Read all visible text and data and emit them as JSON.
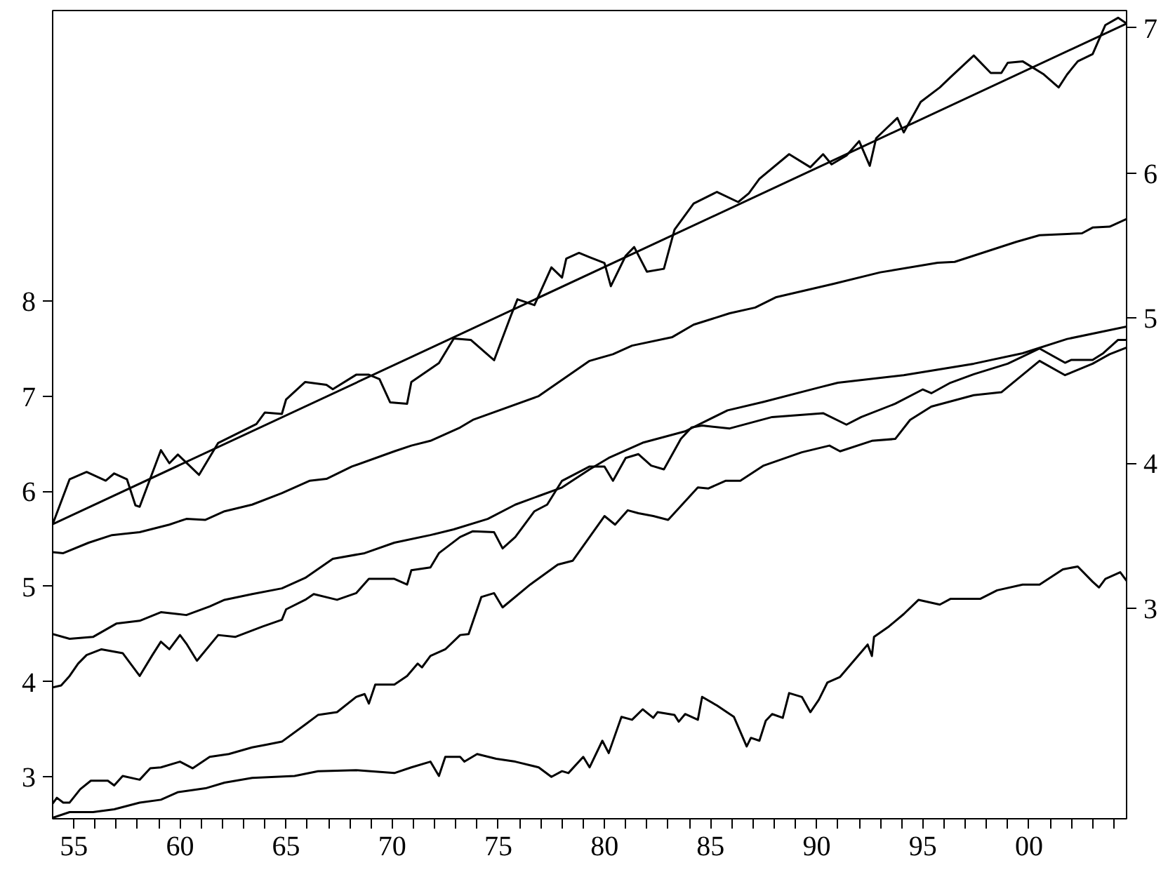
{
  "chart_data": {
    "type": "line",
    "xlim": [
      1954.0,
      2004.6
    ],
    "ylim": [
      2.56,
      11.05
    ],
    "y2lim": [
      1.55,
      7.12
    ],
    "xticks": [
      {
        "value": 1955,
        "label": "55"
      },
      {
        "value": 1956,
        "label": null
      },
      {
        "value": 1957,
        "label": null
      },
      {
        "value": 1958,
        "label": null
      },
      {
        "value": 1959,
        "label": null
      },
      {
        "value": 1960,
        "label": "60"
      },
      {
        "value": 1961,
        "label": null
      },
      {
        "value": 1962,
        "label": null
      },
      {
        "value": 1963,
        "label": null
      },
      {
        "value": 1964,
        "label": null
      },
      {
        "value": 1965,
        "label": "65"
      },
      {
        "value": 1966,
        "label": null
      },
      {
        "value": 1967,
        "label": null
      },
      {
        "value": 1968,
        "label": null
      },
      {
        "value": 1969,
        "label": null
      },
      {
        "value": 1970,
        "label": "70"
      },
      {
        "value": 1971,
        "label": null
      },
      {
        "value": 1972,
        "label": null
      },
      {
        "value": 1973,
        "label": null
      },
      {
        "value": 1974,
        "label": null
      },
      {
        "value": 1975,
        "label": "75"
      },
      {
        "value": 1976,
        "label": null
      },
      {
        "value": 1977,
        "label": null
      },
      {
        "value": 1978,
        "label": null
      },
      {
        "value": 1979,
        "label": null
      },
      {
        "value": 1980,
        "label": "80"
      },
      {
        "value": 1981,
        "label": null
      },
      {
        "value": 1982,
        "label": null
      },
      {
        "value": 1983,
        "label": null
      },
      {
        "value": 1984,
        "label": null
      },
      {
        "value": 1985,
        "label": "85"
      },
      {
        "value": 1986,
        "label": null
      },
      {
        "value": 1987,
        "label": null
      },
      {
        "value": 1988,
        "label": null
      },
      {
        "value": 1989,
        "label": null
      },
      {
        "value": 1990,
        "label": "90"
      },
      {
        "value": 1991,
        "label": null
      },
      {
        "value": 1992,
        "label": null
      },
      {
        "value": 1993,
        "label": null
      },
      {
        "value": 1994,
        "label": null
      },
      {
        "value": 1995,
        "label": "95"
      },
      {
        "value": 1996,
        "label": null
      },
      {
        "value": 1997,
        "label": null
      },
      {
        "value": 1998,
        "label": null
      },
      {
        "value": 1999,
        "label": null
      },
      {
        "value": 2000,
        "label": "00"
      },
      {
        "value": 2001,
        "label": null
      },
      {
        "value": 2002,
        "label": null
      },
      {
        "value": 2003,
        "label": null
      },
      {
        "value": 2004,
        "label": null
      }
    ],
    "yticks": [
      3,
      4,
      5,
      6,
      7,
      8
    ],
    "y2ticks": [
      3,
      4,
      5,
      6,
      7
    ],
    "grid": false,
    "series": [
      {
        "axis": "y2",
        "color": "#000000",
        "x": [
          1954.0,
          1954.8,
          1955.6,
          1956.5,
          1956.9,
          1957.5,
          1957.9,
          1958.1,
          1959.1,
          1959.5,
          1959.9,
          1960.9,
          1961.8,
          1963.6,
          1964.0,
          1964.8,
          1965.0,
          1965.9,
          1966.9,
          1967.2,
          1968.3,
          1968.9,
          1969.4,
          1969.9,
          1970.7,
          1970.9,
          1972.2,
          1972.9,
          1973.7,
          1974.8,
          1975.6,
          1975.9,
          1976.7,
          1977.5,
          1978.0,
          1978.2,
          1978.8,
          1979.3,
          1980.0,
          1980.3,
          1981.0,
          1981.4,
          1982.0,
          1982.8,
          1983.3,
          1984.2,
          1985.3,
          1986.3,
          1986.8,
          1987.3,
          1988.7,
          1989.7,
          1990.3,
          1990.7,
          1991.4,
          1992.0,
          1992.5,
          1992.8,
          1993.8,
          1994.1,
          1994.9,
          1995.8,
          1996.3,
          1997.4,
          1998.2,
          1998.7,
          1999.0,
          1999.7,
          2000.7,
          2001.4,
          2001.8,
          2002.3,
          2003.0,
          2003.6,
          2004.2,
          2004.6
        ],
        "values": [
          3.58,
          3.89,
          3.94,
          3.88,
          3.93,
          3.89,
          3.71,
          3.7,
          4.09,
          4.0,
          4.06,
          3.92,
          4.14,
          4.27,
          4.35,
          4.34,
          4.44,
          4.56,
          4.54,
          4.51,
          4.61,
          4.61,
          4.58,
          4.42,
          4.41,
          4.56,
          4.69,
          4.86,
          4.85,
          4.71,
          5.02,
          5.13,
          5.09,
          5.35,
          5.28,
          5.41,
          5.45,
          5.42,
          5.38,
          5.22,
          5.43,
          5.49,
          5.32,
          5.34,
          5.61,
          5.79,
          5.87,
          5.8,
          5.86,
          5.96,
          6.13,
          6.04,
          6.13,
          6.06,
          6.12,
          6.22,
          6.05,
          6.24,
          6.38,
          6.28,
          6.49,
          6.59,
          6.66,
          6.81,
          6.69,
          6.69,
          6.76,
          6.77,
          6.68,
          6.59,
          6.68,
          6.77,
          6.82,
          7.02,
          7.07,
          7.03
        ]
      },
      {
        "axis": "y2",
        "color": "#000000",
        "x": [
          1954.0,
          2004.6
        ],
        "values": [
          3.58,
          7.03
        ]
      },
      {
        "color": "#000000",
        "x": [
          1954.0,
          1954.5,
          1955.7,
          1956.8,
          1958.1,
          1959.5,
          1960.3,
          1961.2,
          1962.1,
          1963.4,
          1964.8,
          1966.1,
          1966.9,
          1968.1,
          1970.1,
          1970.9,
          1971.8,
          1973.2,
          1973.8,
          1976.9,
          1979.3,
          1980.4,
          1981.3,
          1983.2,
          1984.2,
          1985.9,
          1987.1,
          1988.1,
          1990.8,
          1993.0,
          1995.7,
          1996.5,
          1999.4,
          2000.5,
          2002.5,
          2003.0,
          2003.8,
          2004.6
        ],
        "values": [
          5.36,
          5.35,
          5.46,
          5.54,
          5.57,
          5.65,
          5.71,
          5.7,
          5.79,
          5.86,
          5.98,
          6.11,
          6.13,
          6.26,
          6.42,
          6.48,
          6.53,
          6.67,
          6.75,
          7.0,
          7.37,
          7.44,
          7.53,
          7.62,
          7.75,
          7.87,
          7.93,
          8.04,
          8.18,
          8.3,
          8.4,
          8.41,
          8.62,
          8.69,
          8.71,
          8.77,
          8.78,
          8.86
        ]
      },
      {
        "color": "#000000",
        "x": [
          1954.0,
          1954.8,
          1955.9,
          1957.0,
          1958.1,
          1959.1,
          1960.3,
          1961.4,
          1962.1,
          1963.4,
          1964.8,
          1965.9,
          1967.2,
          1968.7,
          1970.1,
          1971.8,
          1972.9,
          1974.5,
          1975.8,
          1976.9,
          1978.0,
          1979.3,
          1980.2,
          1981.8,
          1983.8,
          1985.8,
          1987.5,
          1990.1,
          1991.0,
          1994.1,
          1997.4,
          1999.7,
          2001.8,
          2004.6
        ],
        "values": [
          4.5,
          4.45,
          4.47,
          4.61,
          4.64,
          4.73,
          4.7,
          4.79,
          4.86,
          4.92,
          4.98,
          5.09,
          5.29,
          5.35,
          5.46,
          5.54,
          5.6,
          5.71,
          5.86,
          5.95,
          6.04,
          6.23,
          6.35,
          6.51,
          6.63,
          6.85,
          6.94,
          7.09,
          7.14,
          7.22,
          7.34,
          7.45,
          7.6,
          7.73
        ]
      },
      {
        "color": "#000000",
        "x": [
          1954.0,
          1954.4,
          1954.8,
          1955.2,
          1955.6,
          1956.3,
          1957.3,
          1958.1,
          1958.7,
          1959.1,
          1959.5,
          1960.0,
          1960.3,
          1960.8,
          1961.8,
          1962.6,
          1963.9,
          1964.8,
          1965.0,
          1965.9,
          1966.3,
          1967.4,
          1968.3,
          1968.9,
          1970.1,
          1970.7,
          1970.9,
          1971.8,
          1972.2,
          1973.2,
          1973.8,
          1974.8,
          1975.2,
          1975.8,
          1976.7,
          1977.3,
          1978.0,
          1979.3,
          1980.0,
          1980.4,
          1981.0,
          1981.6,
          1982.2,
          1982.8,
          1983.6,
          1984.1,
          1984.6,
          1985.9,
          1987.9,
          1990.3,
          1991.4,
          1992.1,
          1993.7,
          1995.0,
          1995.4,
          1996.3,
          1997.4,
          1999.0,
          2000.5,
          2001.7,
          2002.0,
          2003.0,
          2003.5,
          2004.2,
          2004.6
        ],
        "values": [
          3.94,
          3.96,
          4.06,
          4.19,
          4.28,
          4.34,
          4.3,
          4.06,
          4.28,
          4.42,
          4.34,
          4.49,
          4.4,
          4.22,
          4.49,
          4.47,
          4.58,
          4.65,
          4.76,
          4.86,
          4.92,
          4.86,
          4.93,
          5.08,
          5.08,
          5.02,
          5.17,
          5.2,
          5.35,
          5.52,
          5.58,
          5.57,
          5.4,
          5.52,
          5.79,
          5.86,
          6.11,
          6.26,
          6.26,
          6.11,
          6.35,
          6.39,
          6.27,
          6.23,
          6.55,
          6.67,
          6.69,
          6.66,
          6.78,
          6.82,
          6.7,
          6.78,
          6.92,
          7.07,
          7.03,
          7.14,
          7.23,
          7.34,
          7.5,
          7.35,
          7.38,
          7.38,
          7.45,
          7.59,
          7.59
        ]
      },
      {
        "color": "#000000",
        "x": [
          1954.0,
          1954.2,
          1954.5,
          1954.8,
          1955.3,
          1955.8,
          1956.6,
          1956.9,
          1957.3,
          1958.1,
          1958.6,
          1959.1,
          1960.0,
          1960.6,
          1961.4,
          1962.3,
          1963.4,
          1964.1,
          1964.8,
          1965.9,
          1966.5,
          1967.4,
          1968.3,
          1968.7,
          1968.9,
          1969.2,
          1970.1,
          1970.7,
          1971.2,
          1971.4,
          1971.8,
          1972.5,
          1973.2,
          1973.6,
          1974.2,
          1974.8,
          1975.2,
          1976.5,
          1977.8,
          1978.5,
          1979.3,
          1980.0,
          1980.5,
          1981.1,
          1981.6,
          1982.3,
          1983.0,
          1984.4,
          1984.9,
          1985.7,
          1986.4,
          1987.5,
          1989.3,
          1990.6,
          1991.1,
          1992.6,
          1993.7,
          1994.4,
          1995.4,
          1997.4,
          1998.7,
          2000.5,
          2001.7,
          2003.0,
          2003.8,
          2004.6
        ],
        "values": [
          2.72,
          2.78,
          2.73,
          2.73,
          2.87,
          2.96,
          2.96,
          2.91,
          3.01,
          2.97,
          3.09,
          3.1,
          3.16,
          3.09,
          3.21,
          3.24,
          3.31,
          3.34,
          3.37,
          3.55,
          3.65,
          3.68,
          3.84,
          3.87,
          3.77,
          3.97,
          3.97,
          4.06,
          4.19,
          4.15,
          4.27,
          4.34,
          4.49,
          4.5,
          4.89,
          4.93,
          4.78,
          5.02,
          5.23,
          5.27,
          5.52,
          5.74,
          5.65,
          5.8,
          5.77,
          5.74,
          5.7,
          6.04,
          6.03,
          6.11,
          6.11,
          6.27,
          6.41,
          6.48,
          6.42,
          6.53,
          6.55,
          6.75,
          6.89,
          7.01,
          7.04,
          7.37,
          7.22,
          7.34,
          7.44,
          7.51
        ]
      },
      {
        "color": "#000000",
        "x": [
          1954.0,
          1954.8,
          1955.9,
          1956.9,
          1958.1,
          1959.1,
          1959.9,
          1961.2,
          1962.1,
          1963.4,
          1965.4,
          1966.5,
          1968.3,
          1970.1,
          1970.9,
          1971.8,
          1972.2,
          1972.5,
          1973.2,
          1973.4,
          1974.0,
          1974.9,
          1975.8,
          1976.9,
          1977.5,
          1978.0,
          1978.3,
          1979.0,
          1979.3,
          1979.9,
          1980.2,
          1980.8,
          1981.3,
          1981.8,
          1982.3,
          1982.5,
          1983.3,
          1983.5,
          1983.8,
          1984.4,
          1984.6,
          1985.3,
          1986.1,
          1986.7,
          1986.9,
          1987.3,
          1987.6,
          1987.9,
          1988.4,
          1988.7,
          1989.3,
          1989.7,
          1990.1,
          1990.5,
          1991.1,
          1992.4,
          1992.6,
          1992.7,
          1993.4,
          1994.1,
          1994.8,
          1995.8,
          1996.3,
          1997.7,
          1998.5,
          1999.7,
          2000.5,
          2001.6,
          2002.3,
          2003.0,
          2003.3,
          2003.6,
          2004.3,
          2004.6
        ],
        "values": [
          2.57,
          2.63,
          2.63,
          2.66,
          2.73,
          2.76,
          2.84,
          2.88,
          2.94,
          2.99,
          3.01,
          3.06,
          3.07,
          3.04,
          3.1,
          3.16,
          3.01,
          3.21,
          3.21,
          3.16,
          3.24,
          3.19,
          3.16,
          3.1,
          3.0,
          3.06,
          3.04,
          3.21,
          3.1,
          3.38,
          3.25,
          3.63,
          3.6,
          3.71,
          3.62,
          3.68,
          3.65,
          3.58,
          3.66,
          3.6,
          3.84,
          3.75,
          3.63,
          3.32,
          3.41,
          3.38,
          3.59,
          3.66,
          3.62,
          3.88,
          3.84,
          3.68,
          3.81,
          3.99,
          4.05,
          4.39,
          4.27,
          4.47,
          4.58,
          4.71,
          4.86,
          4.81,
          4.87,
          4.87,
          4.96,
          5.02,
          5.02,
          5.18,
          5.21,
          5.05,
          4.99,
          5.08,
          5.15,
          5.06
        ]
      }
    ]
  }
}
